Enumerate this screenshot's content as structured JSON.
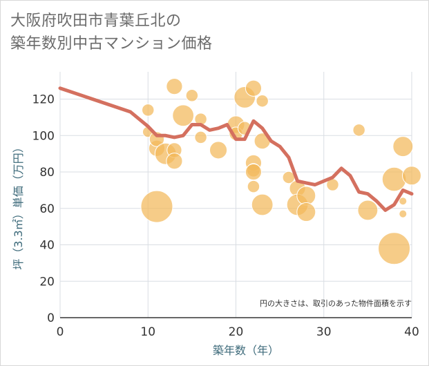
{
  "title_lines": [
    "大阪府吹田市青葉丘北の",
    "築年数別中古マンション価格"
  ],
  "note": "円の大きさは、取引のあった物件面積を示す",
  "chart_data": {
    "type": "scatter",
    "title": "大阪府吹田市青葉丘北の築年数別中古マンション価格",
    "xlabel": "築年数（年）",
    "ylabel": "坪（3.3㎡）単価（万円）",
    "xlim": [
      0,
      40
    ],
    "ylim": [
      0,
      135
    ],
    "x_ticks": [
      0,
      10,
      20,
      30,
      40
    ],
    "y_ticks": [
      0,
      20,
      40,
      60,
      80,
      100,
      120
    ],
    "grid": true,
    "colors": {
      "bubble": "#f2b95a",
      "line": "#d4705f",
      "grid": "#d9dde3"
    },
    "scatter_points": [
      {
        "x": 10,
        "y": 114,
        "s": 0.25
      },
      {
        "x": 10,
        "y": 102,
        "s": 0.2
      },
      {
        "x": 11,
        "y": 61,
        "s": 1.0
      },
      {
        "x": 11,
        "y": 93,
        "s": 0.4
      },
      {
        "x": 11,
        "y": 98,
        "s": 0.35
      },
      {
        "x": 12,
        "y": 90,
        "s": 0.6
      },
      {
        "x": 13,
        "y": 127,
        "s": 0.4
      },
      {
        "x": 13,
        "y": 92,
        "s": 0.35
      },
      {
        "x": 13,
        "y": 86,
        "s": 0.4
      },
      {
        "x": 14,
        "y": 111,
        "s": 0.6
      },
      {
        "x": 15,
        "y": 122,
        "s": 0.25
      },
      {
        "x": 16,
        "y": 109,
        "s": 0.25
      },
      {
        "x": 16,
        "y": 99,
        "s": 0.25
      },
      {
        "x": 18,
        "y": 92,
        "s": 0.45
      },
      {
        "x": 20,
        "y": 106,
        "s": 0.45
      },
      {
        "x": 20,
        "y": 101,
        "s": 0.3
      },
      {
        "x": 21,
        "y": 121,
        "s": 0.6
      },
      {
        "x": 21,
        "y": 104,
        "s": 0.3
      },
      {
        "x": 22,
        "y": 126,
        "s": 0.4
      },
      {
        "x": 22,
        "y": 85,
        "s": 0.4
      },
      {
        "x": 22,
        "y": 81,
        "s": 0.3
      },
      {
        "x": 22,
        "y": 80,
        "s": 0.4
      },
      {
        "x": 22,
        "y": 72,
        "s": 0.25
      },
      {
        "x": 23,
        "y": 119,
        "s": 0.25
      },
      {
        "x": 23,
        "y": 97,
        "s": 0.4
      },
      {
        "x": 23,
        "y": 62,
        "s": 0.6
      },
      {
        "x": 26,
        "y": 77,
        "s": 0.25
      },
      {
        "x": 27,
        "y": 71,
        "s": 0.4
      },
      {
        "x": 27,
        "y": 62,
        "s": 0.6
      },
      {
        "x": 28,
        "y": 67,
        "s": 0.5
      },
      {
        "x": 28,
        "y": 58,
        "s": 0.5
      },
      {
        "x": 31,
        "y": 73,
        "s": 0.25
      },
      {
        "x": 34,
        "y": 103,
        "s": 0.25
      },
      {
        "x": 35,
        "y": 59,
        "s": 0.55
      },
      {
        "x": 38,
        "y": 76,
        "s": 0.7
      },
      {
        "x": 38,
        "y": 38,
        "s": 1.0
      },
      {
        "x": 39,
        "y": 94,
        "s": 0.55
      },
      {
        "x": 39,
        "y": 64,
        "s": 0.08
      },
      {
        "x": 39,
        "y": 57,
        "s": 0.08
      },
      {
        "x": 40,
        "y": 78,
        "s": 0.5
      }
    ],
    "line_points": [
      {
        "x": 0,
        "y": 126
      },
      {
        "x": 8,
        "y": 113
      },
      {
        "x": 10,
        "y": 105
      },
      {
        "x": 11,
        "y": 100
      },
      {
        "x": 12,
        "y": 100
      },
      {
        "x": 13,
        "y": 99
      },
      {
        "x": 14,
        "y": 100
      },
      {
        "x": 15,
        "y": 106
      },
      {
        "x": 16,
        "y": 106
      },
      {
        "x": 17,
        "y": 103
      },
      {
        "x": 18,
        "y": 104
      },
      {
        "x": 19,
        "y": 106
      },
      {
        "x": 20,
        "y": 98
      },
      {
        "x": 21,
        "y": 98
      },
      {
        "x": 22,
        "y": 108
      },
      {
        "x": 23,
        "y": 104
      },
      {
        "x": 24,
        "y": 97
      },
      {
        "x": 25,
        "y": 94
      },
      {
        "x": 26,
        "y": 88
      },
      {
        "x": 27,
        "y": 75
      },
      {
        "x": 28,
        "y": 74
      },
      {
        "x": 29,
        "y": 73
      },
      {
        "x": 30,
        "y": 75
      },
      {
        "x": 31,
        "y": 77
      },
      {
        "x": 32,
        "y": 82
      },
      {
        "x": 33,
        "y": 78
      },
      {
        "x": 34,
        "y": 69
      },
      {
        "x": 35,
        "y": 68
      },
      {
        "x": 36,
        "y": 64
      },
      {
        "x": 37,
        "y": 59
      },
      {
        "x": 38,
        "y": 62
      },
      {
        "x": 39,
        "y": 70
      },
      {
        "x": 40,
        "y": 68
      }
    ]
  }
}
